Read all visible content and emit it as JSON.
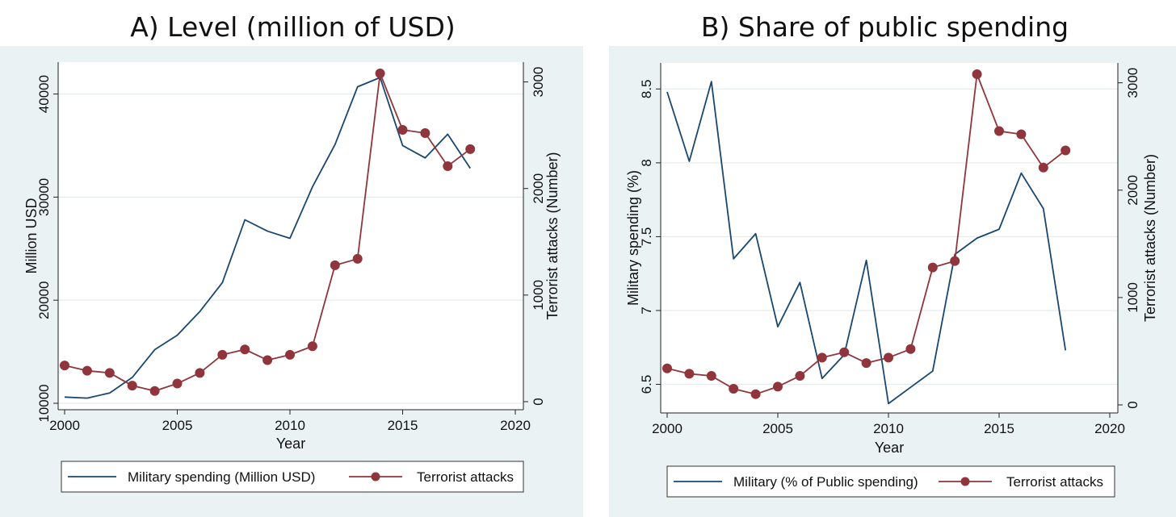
{
  "colors": {
    "panel_bg": "#eaf2f3",
    "plot_bg": "#ffffff",
    "grid": "#e6ecee",
    "military_line": "#1a476f",
    "attacks_line": "#90353b",
    "axis": "#222222"
  },
  "chart_data": [
    {
      "type": "line",
      "title": "A) Level (million of USD)",
      "xlabel": "Year",
      "ylabel": "Million USD",
      "y2label": "Terrorist attacks (Number)",
      "xlim": [
        2000,
        2020
      ],
      "ylim": [
        10000,
        42000
      ],
      "y2lim": [
        0,
        3080
      ],
      "x_ticks": [
        "2000",
        "2005",
        "2010",
        "2015",
        "2020"
      ],
      "y_ticks": [
        "10000",
        "20000",
        "30000",
        "40000"
      ],
      "y2_ticks": [
        "0",
        "1000",
        "2000",
        "3000"
      ],
      "grid": true,
      "legend_position": "bottom",
      "series": [
        {
          "name": "Military  spending (Million USD)",
          "axis": "left",
          "marker": "none",
          "x": [
            2000,
            2001,
            2002,
            2003,
            2004,
            2005,
            2006,
            2007,
            2008,
            2009,
            2010,
            2011,
            2012,
            2013,
            2014,
            2015,
            2016,
            2017,
            2018
          ],
          "values": [
            10600,
            10500,
            11000,
            12500,
            15200,
            16600,
            18900,
            21700,
            27800,
            26700,
            26000,
            31000,
            35100,
            40700,
            41600,
            35000,
            33800,
            36100,
            32800
          ]
        },
        {
          "name": "Terrorist attacks",
          "axis": "right",
          "marker": "circle",
          "x": [
            2000,
            2001,
            2002,
            2003,
            2004,
            2005,
            2006,
            2007,
            2008,
            2009,
            2010,
            2011,
            2012,
            2013,
            2014,
            2015,
            2016,
            2017,
            2018
          ],
          "values": [
            340,
            290,
            270,
            150,
            100,
            170,
            270,
            440,
            490,
            390,
            440,
            520,
            1280,
            1340,
            3080,
            2550,
            2520,
            2210,
            2370
          ]
        }
      ]
    },
    {
      "type": "line",
      "title": "B) Share of public spending",
      "xlabel": "Year",
      "ylabel": "Military spending (%)",
      "y2label": "Terrorist attacks (Number)",
      "xlim": [
        2000,
        2020
      ],
      "ylim": [
        6.35,
        8.6
      ],
      "y2lim": [
        0,
        3080
      ],
      "x_ticks": [
        "2000",
        "2005",
        "2010",
        "2015",
        "2020"
      ],
      "y_ticks": [
        "6.5",
        "7",
        "7.5",
        "8",
        "8.5"
      ],
      "y2_ticks": [
        "0",
        "1000",
        "2000",
        "3000"
      ],
      "grid": true,
      "legend_position": "bottom",
      "series": [
        {
          "name": "Military  (% of Public spending)",
          "axis": "left",
          "marker": "none",
          "x": [
            2000,
            2001,
            2002,
            2003,
            2004,
            2005,
            2006,
            2007,
            2008,
            2009,
            2010,
            2011,
            2012,
            2013,
            2014,
            2015,
            2016,
            2017,
            2018
          ],
          "values": [
            8.48,
            8.01,
            8.55,
            7.35,
            7.52,
            6.89,
            7.19,
            6.54,
            6.7,
            7.34,
            6.37,
            6.48,
            6.59,
            7.38,
            7.49,
            7.55,
            7.93,
            7.69,
            6.73
          ]
        },
        {
          "name": "Terrorist attacks",
          "axis": "right",
          "marker": "circle",
          "x": [
            2000,
            2001,
            2002,
            2003,
            2004,
            2005,
            2006,
            2007,
            2008,
            2009,
            2010,
            2011,
            2012,
            2013,
            2014,
            2015,
            2016,
            2017,
            2018
          ],
          "values": [
            340,
            290,
            270,
            150,
            100,
            170,
            270,
            440,
            490,
            390,
            440,
            520,
            1280,
            1340,
            3080,
            2550,
            2520,
            2210,
            2370
          ]
        }
      ]
    }
  ]
}
